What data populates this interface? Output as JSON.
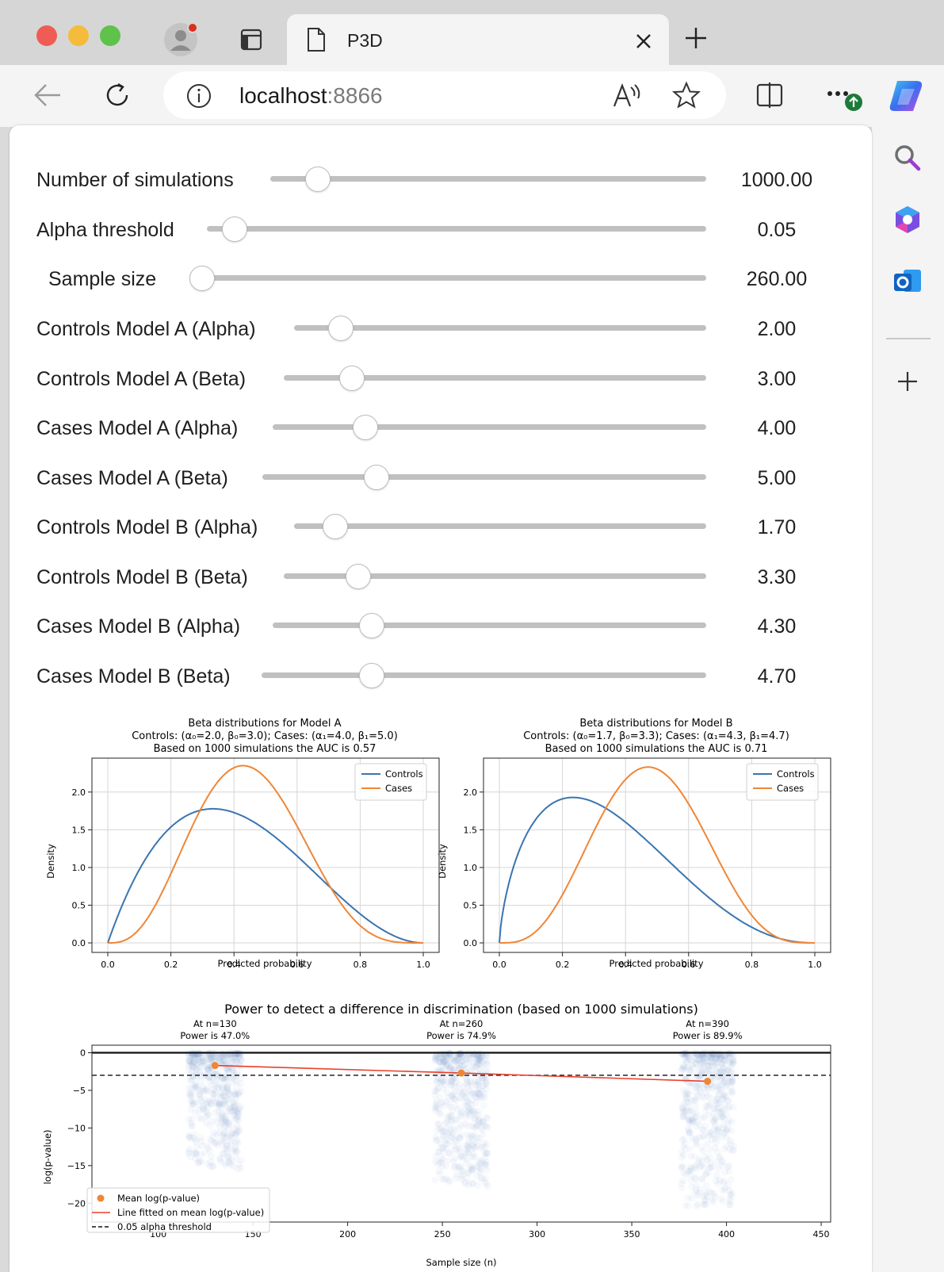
{
  "browser": {
    "tab_title": "P3D",
    "url_host": "localhost",
    "url_port": ":8866",
    "icons": [
      "profile-icon",
      "tab-actions-icon",
      "page-icon",
      "close-icon",
      "new-tab-icon",
      "back-icon",
      "reload-icon",
      "site-info-icon",
      "read-aloud-icon",
      "favorite-icon",
      "split-screen-icon",
      "more-icon",
      "copilot-icon",
      "search-icon",
      "m365-icon",
      "outlook-icon",
      "add-icon"
    ]
  },
  "sliders": [
    {
      "label": "Number of simulations",
      "value": "1000.00",
      "fraction": 0.09
    },
    {
      "label": "Alpha threshold",
      "value": "0.05",
      "fraction": 0.04
    },
    {
      "label": "Sample size",
      "value": "260.00",
      "fraction": 0.0
    },
    {
      "label": "Controls Model A (Alpha)",
      "value": "2.00",
      "fraction": 0.095
    },
    {
      "label": "Controls Model A (Beta)",
      "value": "3.00",
      "fraction": 0.142
    },
    {
      "label": "Cases Model A (Alpha)",
      "value": "4.00",
      "fraction": 0.195
    },
    {
      "label": "Cases Model A (Beta)",
      "value": "5.00",
      "fraction": 0.24
    },
    {
      "label": "Controls Model B (Alpha)",
      "value": "1.70",
      "fraction": 0.08
    },
    {
      "label": "Controls Model B (Beta)",
      "value": "3.30",
      "fraction": 0.157
    },
    {
      "label": "Cases Model B (Alpha)",
      "value": "4.30",
      "fraction": 0.21
    },
    {
      "label": "Cases Model B (Beta)",
      "value": "4.70",
      "fraction": 0.23
    }
  ],
  "chart_data": [
    {
      "type": "line",
      "title_lines": [
        "Beta distributions for Model A",
        "Controls: (α₀=2.0, β₀=3.0); Cases: (α₁=4.0, β₁=5.0)",
        "Based on 1000 simulations the AUC is 0.57"
      ],
      "xlabel": "Predicted probability",
      "ylabel": "Density",
      "xlim": [
        0,
        1
      ],
      "ylim": [
        0,
        2.45
      ],
      "xticks": [
        "0.0",
        "0.2",
        "0.4",
        "0.6",
        "0.8",
        "1.0"
      ],
      "yticks": [
        "0.0",
        "0.5",
        "1.0",
        "1.5",
        "2.0"
      ],
      "grid": true,
      "legend": "top-right",
      "series": [
        {
          "name": "Controls",
          "color": "#3a75b0",
          "distribution": "beta",
          "alpha": 2.0,
          "beta": 3.0
        },
        {
          "name": "Cases",
          "color": "#ef8636",
          "distribution": "beta",
          "alpha": 4.0,
          "beta": 5.0
        }
      ]
    },
    {
      "type": "line",
      "title_lines": [
        "Beta distributions for Model B",
        "Controls: (α₀=1.7, β₀=3.3); Cases: (α₁=4.3, β₁=4.7)",
        "Based on 1000 simulations the AUC is 0.71"
      ],
      "xlabel": "Predicted probability",
      "ylabel": "Density",
      "xlim": [
        0,
        1
      ],
      "ylim": [
        0,
        2.45
      ],
      "xticks": [
        "0.0",
        "0.2",
        "0.4",
        "0.6",
        "0.8",
        "1.0"
      ],
      "yticks": [
        "0.0",
        "0.5",
        "1.0",
        "1.5",
        "2.0"
      ],
      "grid": true,
      "legend": "top-right",
      "series": [
        {
          "name": "Controls",
          "color": "#3a75b0",
          "distribution": "beta",
          "alpha": 1.7,
          "beta": 3.3
        },
        {
          "name": "Cases",
          "color": "#ef8636",
          "distribution": "beta",
          "alpha": 4.3,
          "beta": 4.7
        }
      ]
    },
    {
      "type": "scatter",
      "title": "Power to detect a difference in discrimination (based on 1000 simulations)",
      "annotations": [
        {
          "x": 130,
          "line1": "At n=130",
          "line2": "Power is 47.0%"
        },
        {
          "x": 260,
          "line1": "At n=260",
          "line2": "Power is 74.9%"
        },
        {
          "x": 390,
          "line1": "At n=390",
          "line2": "Power is 89.9%"
        }
      ],
      "xlabel": "Sample size (n)",
      "ylabel": "log(p-value)",
      "xlim": [
        65,
        455
      ],
      "ylim": [
        -22.5,
        1
      ],
      "xticks": [
        100,
        150,
        200,
        250,
        300,
        350,
        400,
        450
      ],
      "yticks": [
        0,
        -5,
        -10,
        -15,
        -20
      ],
      "zero_line": 0,
      "alpha_line": -3.0,
      "mean_points": {
        "x": [
          130,
          260,
          390
        ],
        "y": [
          -1.7,
          -2.7,
          -3.8
        ]
      },
      "point_clouds": [
        {
          "n": 130,
          "x_spread": 14,
          "y_max": -0.05,
          "y_min": -15.5
        },
        {
          "n": 260,
          "x_spread": 14,
          "y_max": -0.05,
          "y_min": -18.0
        },
        {
          "n": 390,
          "x_spread": 14,
          "y_max": -0.05,
          "y_min": -20.5
        }
      ],
      "colors": {
        "cloud": "#3a75b0",
        "mean": "#ef8636",
        "fit": "#e8402a"
      },
      "legend": "bottom-left",
      "legend_entries": [
        "Mean log(p-value)",
        "Line fitted on mean log(p-value)",
        "0.05 alpha threshold"
      ]
    }
  ]
}
